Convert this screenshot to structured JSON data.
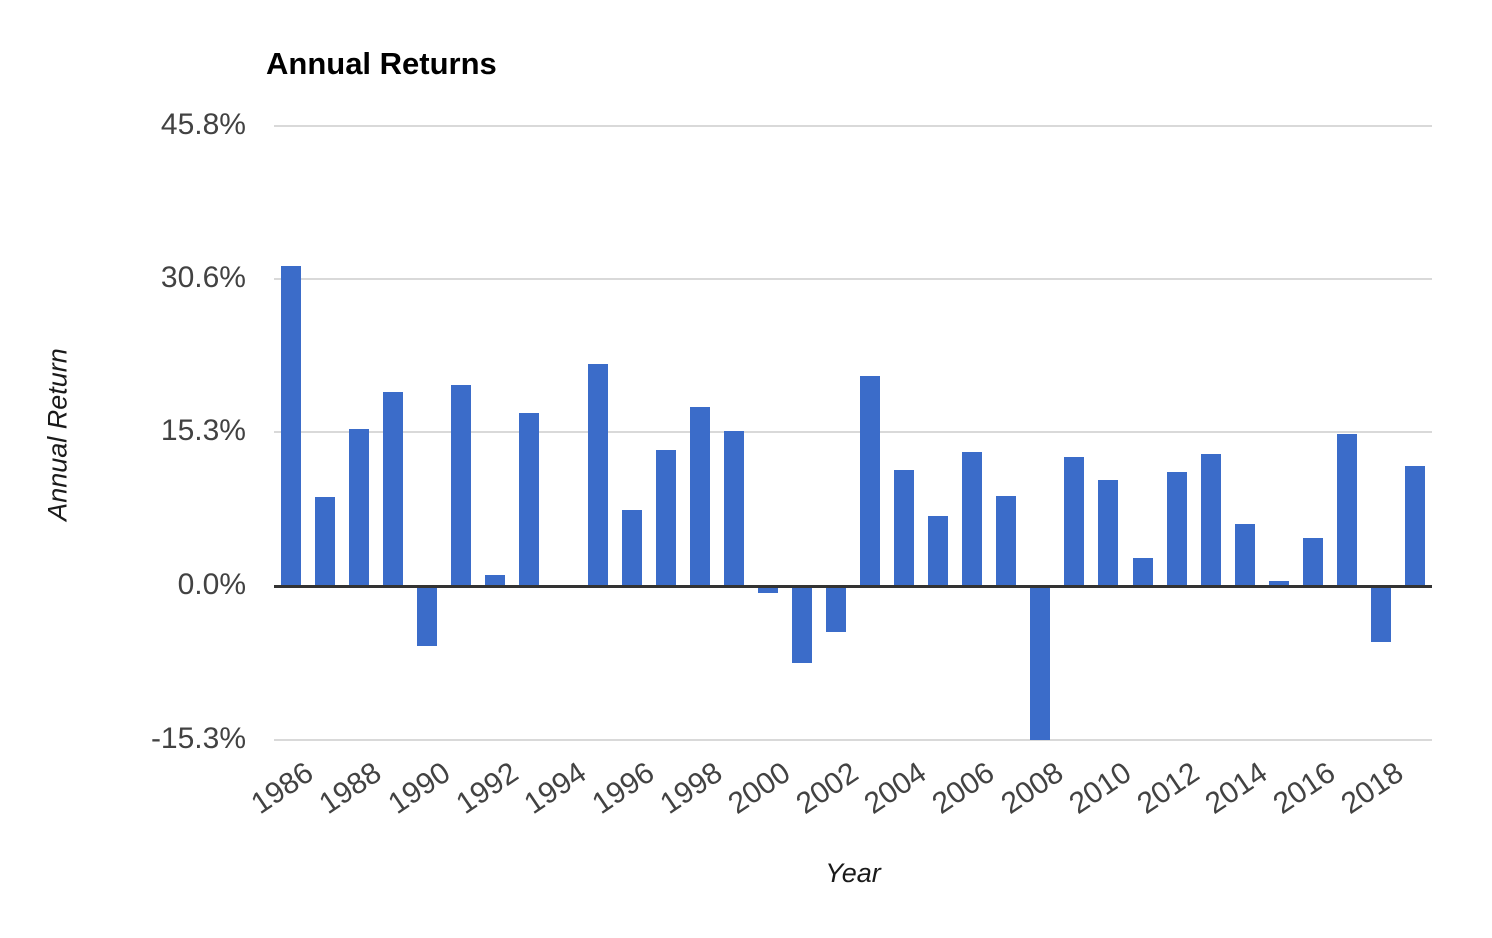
{
  "page": {
    "background_color": "#ffffff"
  },
  "chart_data": {
    "type": "bar",
    "title": "Annual Returns",
    "xlabel": "Year",
    "ylabel": "Annual Return",
    "legend": "none",
    "grid": "horizontal",
    "bar_color": "#3b6cc9",
    "gridline_color": "#d9d9d9",
    "zero_line_color": "#333333",
    "tick_label_color": "#424242",
    "ylim": [
      -15.3,
      45.8
    ],
    "y_ticks": [
      {
        "value": 45.8,
        "label": "45.8%"
      },
      {
        "value": 30.6,
        "label": "30.6%"
      },
      {
        "value": 15.3,
        "label": "15.3%"
      },
      {
        "value": 0.0,
        "label": "0.0%"
      },
      {
        "value": -15.3,
        "label": "-15.3%"
      }
    ],
    "x": [
      1986,
      1987,
      1988,
      1989,
      1990,
      1991,
      1992,
      1993,
      1994,
      1995,
      1996,
      1997,
      1998,
      1999,
      2000,
      2001,
      2002,
      2003,
      2004,
      2005,
      2006,
      2007,
      2008,
      2009,
      2010,
      2011,
      2012,
      2013,
      2014,
      2015,
      2016,
      2017,
      2018,
      2019
    ],
    "values": [
      31.9,
      8.9,
      15.6,
      19.3,
      -5.9,
      20.0,
      1.1,
      17.2,
      0.0,
      22.1,
      7.6,
      13.6,
      17.8,
      15.4,
      -0.7,
      -7.6,
      -4.6,
      20.9,
      11.6,
      7.0,
      13.4,
      9.0,
      -15.3,
      12.9,
      10.6,
      2.8,
      11.4,
      13.2,
      6.2,
      0.5,
      4.8,
      15.2,
      -5.5,
      12.0
    ],
    "x_tick_labels": [
      "1986",
      "1988",
      "1990",
      "1992",
      "1994",
      "1996",
      "1998",
      "2000",
      "2002",
      "2004",
      "2006",
      "2008",
      "2010",
      "2012",
      "2014",
      "2016",
      "2018"
    ]
  }
}
